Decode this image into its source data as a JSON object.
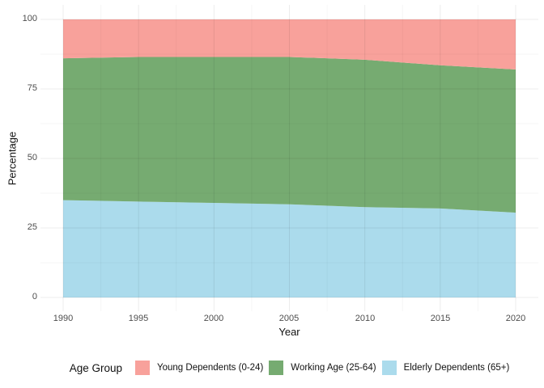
{
  "chart_data": {
    "type": "area",
    "stacked": true,
    "title": "",
    "xlabel": "Year",
    "ylabel": "Percentage",
    "x": [
      1990,
      1995,
      2000,
      2005,
      2010,
      2015,
      2020
    ],
    "series": [
      {
        "name": "Elderly Dependents (65+)",
        "color": "#abdbec",
        "values": [
          35,
          34.5,
          34,
          33.5,
          32.5,
          32,
          30.5
        ]
      },
      {
        "name": "Working Age (25-64)",
        "color": "#76ab71",
        "values": [
          51,
          52,
          52.5,
          53,
          53,
          51.5,
          51.5
        ]
      },
      {
        "name": "Young Dependents (0-24)",
        "color": "#f8a19b",
        "values": [
          14,
          13.5,
          13.5,
          13.5,
          14.5,
          16.5,
          18
        ]
      }
    ],
    "xlim": [
      1990,
      2020
    ],
    "ylim": [
      0,
      100
    ],
    "x_ticks": [
      "1990",
      "1995",
      "2000",
      "2005",
      "2010",
      "2015",
      "2020"
    ],
    "y_ticks": [
      "0",
      "25",
      "50",
      "75",
      "100"
    ],
    "grid": "major and minor, light grey on white",
    "legend_position": "bottom"
  },
  "axes": {
    "x_title": "Year",
    "y_title": "Percentage"
  },
  "legend": {
    "title": "Age Group",
    "items": [
      {
        "label": "Young Dependents (0-24)",
        "color": "#f8a19b"
      },
      {
        "label": "Working Age (25-64)",
        "color": "#76ab71"
      },
      {
        "label": "Elderly Dependents (65+)",
        "color": "#abdbec"
      }
    ]
  }
}
